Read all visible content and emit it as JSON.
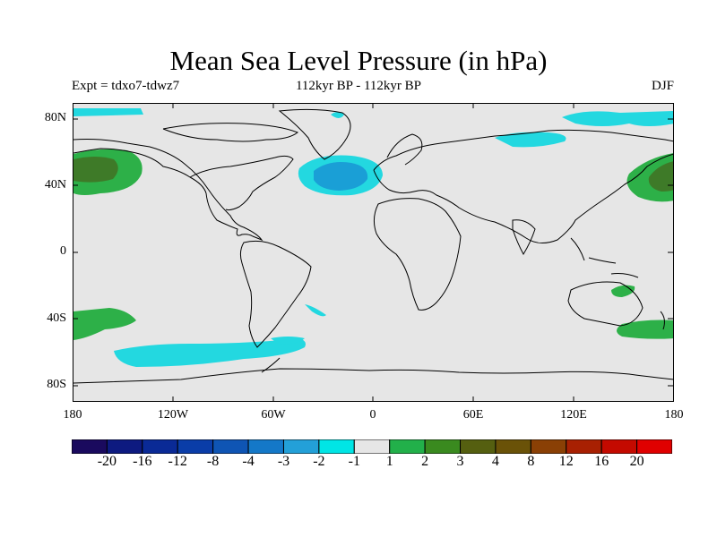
{
  "title": "Mean Sea Level Pressure (in hPa)",
  "experiment_label": "Expt = tdxo7-tdwz7",
  "period_label": "112kyr BP - 112kyr BP",
  "season_label": "DJF",
  "lat_ticks": [
    "80N",
    "40N",
    "0",
    "40S",
    "80S"
  ],
  "lon_ticks": [
    "180",
    "120W",
    "60W",
    "0",
    "60E",
    "120E",
    "180"
  ],
  "colorbar": {
    "labels": [
      "-20",
      "-16",
      "-12",
      "-8",
      "-4",
      "-3",
      "-2",
      "-1",
      "1",
      "2",
      "3",
      "4",
      "8",
      "12",
      "16",
      "20"
    ],
    "colors": [
      "#1a0a5e",
      "#0d1a80",
      "#0a2a96",
      "#0a3da8",
      "#0f55b4",
      "#1478c8",
      "#23a0d8",
      "#00e5e5",
      "#e6e6e6",
      "#22b04a",
      "#3a8a1f",
      "#555f10",
      "#6a5208",
      "#8a4005",
      "#a82002",
      "#c40a00",
      "#e00000"
    ]
  },
  "colors": {
    "background": "#e6e6e6",
    "negative_light": "#23d8e0",
    "negative_mid": "#1a9fd6",
    "positive_light": "#2db048",
    "positive_dark": "#3e7a28"
  }
}
